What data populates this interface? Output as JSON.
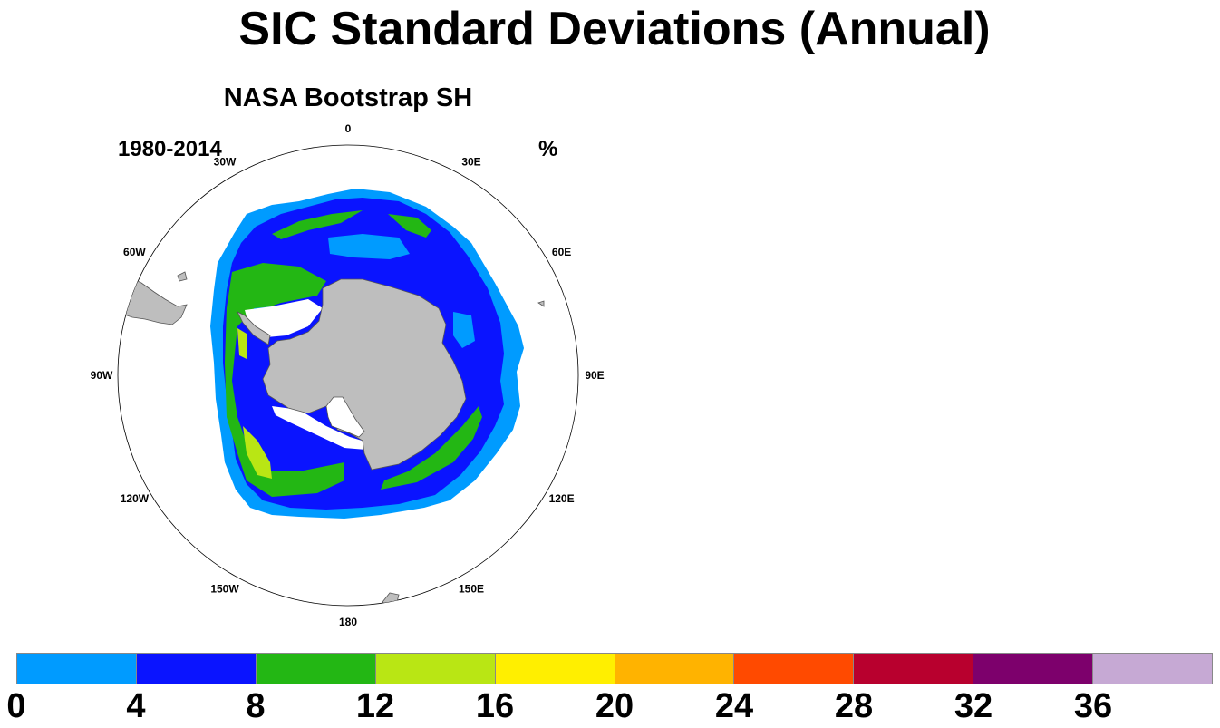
{
  "figure": {
    "title": "SIC Standard Deviations (Annual)",
    "subtitle": "NASA Bootstrap SH",
    "period": "1980-2014",
    "units": "%"
  },
  "map": {
    "projection": "south-polar-stereographic",
    "longitude_labels": [
      "0",
      "30E",
      "60E",
      "90E",
      "120E",
      "150E",
      "180",
      "150W",
      "120W",
      "90W",
      "60W",
      "30W"
    ],
    "land_color": "#bebebe",
    "ocean_color": "#ffffff"
  },
  "colorbar": {
    "levels": [
      "0",
      "4",
      "8",
      "12",
      "16",
      "20",
      "24",
      "28",
      "32",
      "36"
    ],
    "colors": [
      "#009bff",
      "#0a14ff",
      "#23b714",
      "#b9e614",
      "#ffef00",
      "#ffb300",
      "#ff4a00",
      "#b8002e",
      "#7d006c",
      "#c6a9d4"
    ]
  }
}
